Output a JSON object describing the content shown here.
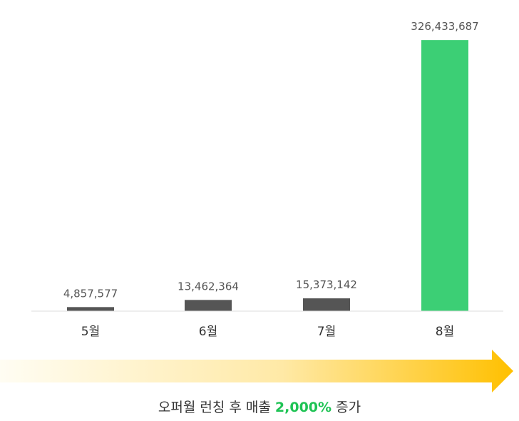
{
  "chart_data": {
    "type": "bar",
    "categories": [
      "5월",
      "6월",
      "7월",
      "8월"
    ],
    "values": [
      4857577,
      13462364,
      15373142,
      326433687
    ],
    "value_labels": [
      "4,857,577",
      "13,462,364",
      "15,373,142",
      "326,433,687"
    ],
    "ylim": [
      0,
      336000000
    ],
    "grid": false,
    "legend": "none",
    "colors": {
      "default_bar": "#555555",
      "highlight_bar": "#3ccf75",
      "baseline": "#dddddd"
    },
    "highlight_index": 3
  },
  "caption": {
    "prefix": "오퍼월 런칭 후 매출",
    "highlight": "2,000%",
    "suffix": "증가",
    "highlight_color": "#1fc355"
  },
  "arrow": {
    "color_start": "#fffdf3",
    "color_end": "#ffc000"
  }
}
